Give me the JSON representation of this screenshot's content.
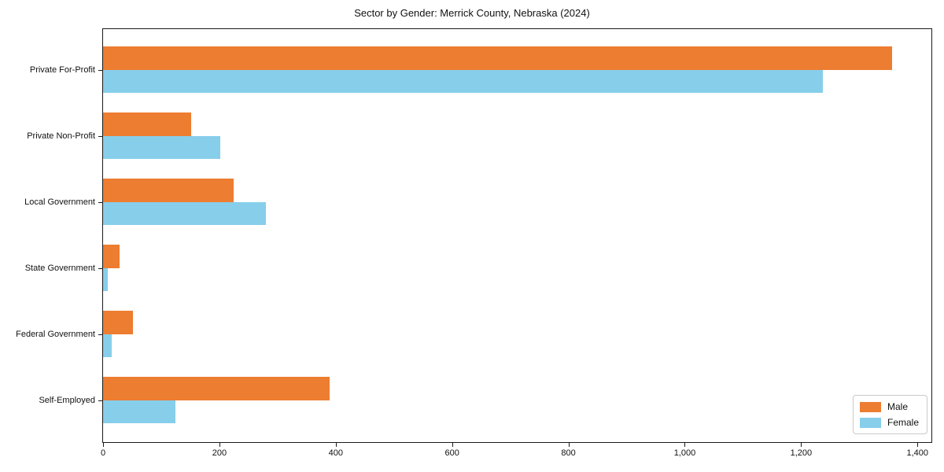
{
  "chart_data": {
    "type": "bar",
    "orientation": "horizontal",
    "title": "Sector by Gender: Merrick County, Nebraska (2024)",
    "categories": [
      "Private For-Profit",
      "Private Non-Profit",
      "Local Government",
      "State Government",
      "Federal Government",
      "Self-Employed"
    ],
    "series": [
      {
        "name": "Male",
        "color": "#ED7D31",
        "values": [
          1356,
          152,
          225,
          28,
          51,
          390
        ]
      },
      {
        "name": "Female",
        "color": "#87CEEB",
        "values": [
          1238,
          202,
          280,
          8,
          15,
          124
        ]
      }
    ],
    "xlabel": "",
    "ylabel": "",
    "xlim": [
      0,
      1424
    ],
    "x_ticks": [
      0,
      200,
      400,
      600,
      800,
      1000,
      1200,
      1400
    ],
    "x_tick_labels": [
      "0",
      "200",
      "400",
      "600",
      "800",
      "1,000",
      "1,200",
      "1,400"
    ],
    "grid": false,
    "legend_position": "lower right"
  }
}
